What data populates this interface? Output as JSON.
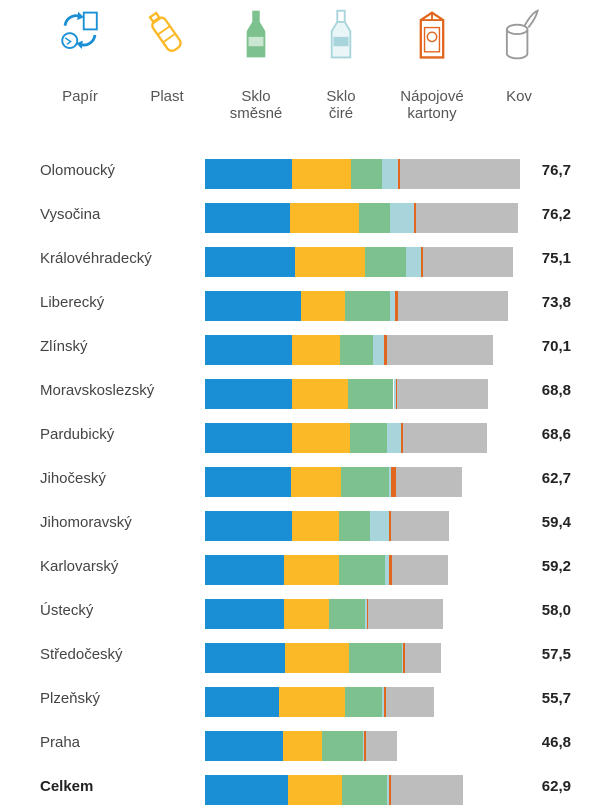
{
  "colors": {
    "paper": "#1a8fd6",
    "plastic": "#fbb827",
    "glass_mixed": "#7dc28e",
    "glass_clear": "#a8d5dc",
    "cartons": "#e1671e",
    "metal": "#bdbdbd"
  },
  "legend": [
    {
      "key": "paper",
      "label": "Papír",
      "icon": "recycle-paper-icon"
    },
    {
      "key": "plastic",
      "label": "Plast",
      "icon": "plastic-bottle-icon"
    },
    {
      "key": "glass_mixed",
      "label": "Sklo\nsměsné",
      "icon": "green-glass-bottle-icon"
    },
    {
      "key": "glass_clear",
      "label": "Sklo\nčiré",
      "icon": "clear-glass-bottle-icon"
    },
    {
      "key": "cartons",
      "label": "Nápojové\nkartony",
      "icon": "beverage-carton-icon"
    },
    {
      "key": "metal",
      "label": "Kov",
      "icon": "metal-can-icon"
    }
  ],
  "chart_data": {
    "type": "bar",
    "orientation": "horizontal",
    "stacked": true,
    "categories": [
      "Olomoucký",
      "Vysočina",
      "Královéhradecký",
      "Liberecký",
      "Zlínský",
      "Moravskoslezský",
      "Pardubický",
      "Jihočeský",
      "Jihomoravský",
      "Karlovarský",
      "Ústecký",
      "Středočeský",
      "Plzeňský",
      "Praha",
      "Celkem"
    ],
    "totals": [
      "76,7",
      "76,2",
      "75,1",
      "73,8",
      "70,1",
      "68,8",
      "68,6",
      "62,7",
      "59,4",
      "59,2",
      "58,0",
      "57,5",
      "55,7",
      "46,8",
      "62,9"
    ],
    "series": [
      {
        "name": "Papír",
        "key": "paper",
        "values": [
          21.2,
          20.6,
          21.9,
          23.4,
          21.3,
          21.3,
          21.1,
          20.9,
          21.1,
          19.3,
          19.2,
          19.5,
          18.1,
          18.9,
          20.3
        ]
      },
      {
        "name": "Plast",
        "key": "plastic",
        "values": [
          14.3,
          16.9,
          17.1,
          10.6,
          11.6,
          13.5,
          14.1,
          12.3,
          11.6,
          13.3,
          10.9,
          15.6,
          15.9,
          9.6,
          13.0
        ]
      },
      {
        "name": "Sklo směsné",
        "key": "glass_mixed",
        "values": [
          7.5,
          7.6,
          9.9,
          11.1,
          7.9,
          11.1,
          9.0,
          11.6,
          7.4,
          11.3,
          8.9,
          12.8,
          9.2,
          9.9,
          11.0
        ]
      },
      {
        "name": "Sklo čiré",
        "key": "glass_clear",
        "values": [
          3.9,
          5.7,
          3.6,
          1.2,
          2.9,
          0.5,
          3.5,
          0.5,
          4.8,
          0.9,
          0.5,
          0.2,
          0.4,
          0.2,
          0.4
        ]
      },
      {
        "name": "Nápojové kartony",
        "key": "cartons",
        "values": [
          0.5,
          0.6,
          0.6,
          0.6,
          0.6,
          0.3,
          0.6,
          1.2,
          0.5,
          0.8,
          0.3,
          0.6,
          0.5,
          0.5,
          0.5
        ]
      },
      {
        "name": "Kov",
        "key": "metal",
        "values": [
          29.3,
          24.8,
          22.0,
          26.9,
          25.8,
          22.1,
          20.3,
          16.2,
          14.0,
          13.6,
          18.2,
          8.8,
          11.6,
          7.7,
          17.7
        ]
      }
    ],
    "xlim": [
      0,
      76.7
    ],
    "grid": false,
    "legend_position": "top"
  }
}
